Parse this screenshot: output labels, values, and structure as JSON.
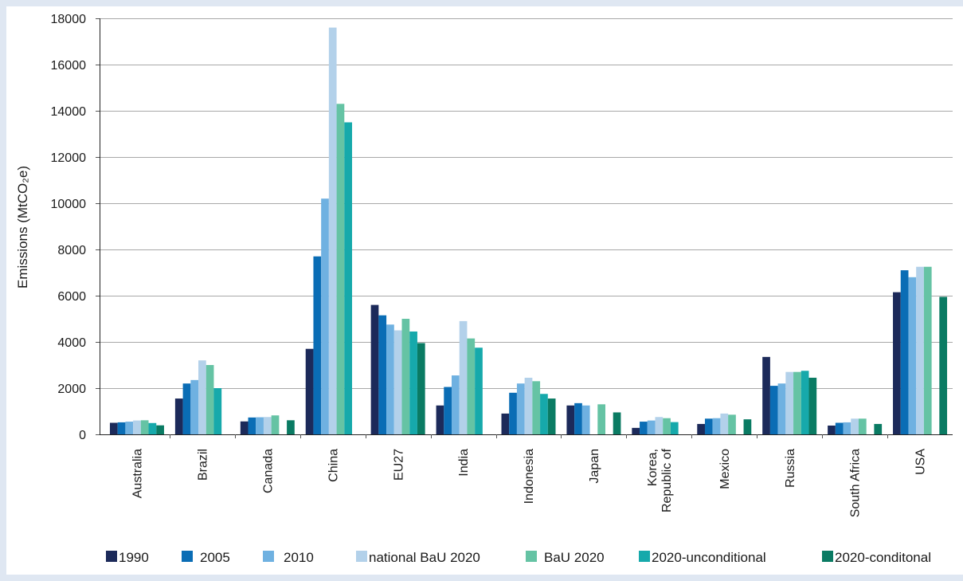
{
  "chart_data": {
    "type": "bar",
    "ylabel": "Emissions (MtCO₂e)",
    "ylim": [
      0,
      18000
    ],
    "yticks": [
      0,
      2000,
      4000,
      6000,
      8000,
      10000,
      12000,
      14000,
      16000,
      18000
    ],
    "grid": true,
    "legend_position": "bottom",
    "categories": [
      "Australia",
      "Brazil",
      "Canada",
      "China",
      "EU27",
      "India",
      "Indonesia",
      "Japan",
      "Korea, Republic of",
      "Mexico",
      "Russia",
      "South Africa",
      "USA"
    ],
    "series": [
      {
        "name": "1990",
        "color": "#1c2a5a",
        "values": [
          500,
          1550,
          560,
          3700,
          5600,
          1250,
          900,
          1250,
          280,
          450,
          3350,
          380,
          6150
        ]
      },
      {
        "name": "2005",
        "color": "#0a6db5",
        "values": [
          520,
          2200,
          730,
          7700,
          5150,
          2050,
          1800,
          1350,
          550,
          680,
          2100,
          500,
          7100
        ]
      },
      {
        "name": "2010",
        "color": "#6fb1e1",
        "values": [
          550,
          2350,
          740,
          10200,
          4750,
          2550,
          2200,
          1250,
          600,
          700,
          2200,
          520,
          6800
        ]
      },
      {
        "name": "national BaU 2020",
        "color": "#b3d1ea",
        "values": [
          600,
          3200,
          750,
          17600,
          4500,
          4900,
          2450,
          null,
          750,
          900,
          2700,
          680,
          7250
        ]
      },
      {
        "name": "BaU 2020",
        "color": "#65c3a4",
        "values": [
          610,
          3000,
          820,
          14300,
          5000,
          4150,
          2300,
          1300,
          700,
          850,
          2700,
          680,
          7250
        ]
      },
      {
        "name": "2020-unconditional",
        "color": "#16a9ab",
        "values": [
          490,
          2000,
          null,
          13500,
          4450,
          3750,
          1750,
          null,
          530,
          null,
          2750,
          null,
          null
        ]
      },
      {
        "name": "2020-conditonal",
        "color": "#0a7b63",
        "values": [
          390,
          null,
          610,
          null,
          3950,
          null,
          1550,
          950,
          null,
          650,
          2450,
          450,
          5950
        ]
      }
    ]
  },
  "colors": {
    "frame": "#dfe7f2",
    "panel": "#ffffff"
  }
}
